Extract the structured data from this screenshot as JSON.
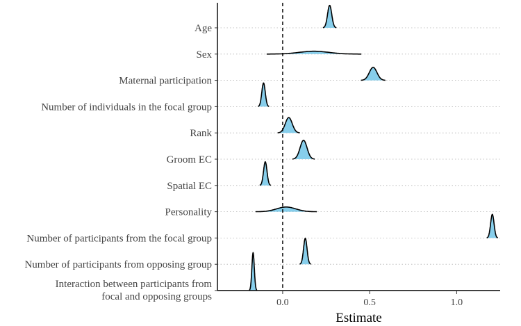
{
  "chart_data": {
    "type": "ridgeline",
    "title": "",
    "xlabel": "Estimate",
    "ylabel": "",
    "xlim": [
      -0.375,
      1.25
    ],
    "x_ticks": [
      0.0,
      0.5,
      1.0
    ],
    "x_tick_labels": [
      "0.0",
      "0.5",
      "1.0"
    ],
    "reference_line_x": 0,
    "fill_color": "#87ceeb",
    "line_color": "#000000",
    "grid_color": "#b3b3b3",
    "grid": true,
    "series": [
      {
        "label": [
          "Age"
        ],
        "mean": 0.27,
        "sd": 0.012,
        "height": 0.95
      },
      {
        "label": [
          "Sex"
        ],
        "mean": 0.18,
        "sd": 0.085,
        "height": 0.12
      },
      {
        "label": [
          "Maternal participation"
        ],
        "mean": 0.52,
        "sd": 0.022,
        "height": 0.55
      },
      {
        "label": [
          "Number of individuals in the focal group"
        ],
        "mean": -0.11,
        "sd": 0.01,
        "height": 1.0
      },
      {
        "label": [
          "Rank"
        ],
        "mean": 0.035,
        "sd": 0.02,
        "height": 0.65
      },
      {
        "label": [
          "Groom EC"
        ],
        "mean": 0.12,
        "sd": 0.02,
        "height": 0.8
      },
      {
        "label": [
          "Spatial EC"
        ],
        "mean": -0.1,
        "sd": 0.01,
        "height": 1.0
      },
      {
        "label": [
          "Personality"
        ],
        "mean": 0.02,
        "sd": 0.055,
        "height": 0.2
      },
      {
        "label": [
          "Number of participants from the focal group"
        ],
        "mean": 1.205,
        "sd": 0.01,
        "height": 1.0
      },
      {
        "label": [
          "Number of participants from opposing group"
        ],
        "mean": 0.13,
        "sd": 0.01,
        "height": 1.1
      },
      {
        "label": [
          "Interaction between participants from",
          "focal and opposing groups"
        ],
        "mean": -0.17,
        "sd": 0.007,
        "height": 1.6
      }
    ]
  }
}
